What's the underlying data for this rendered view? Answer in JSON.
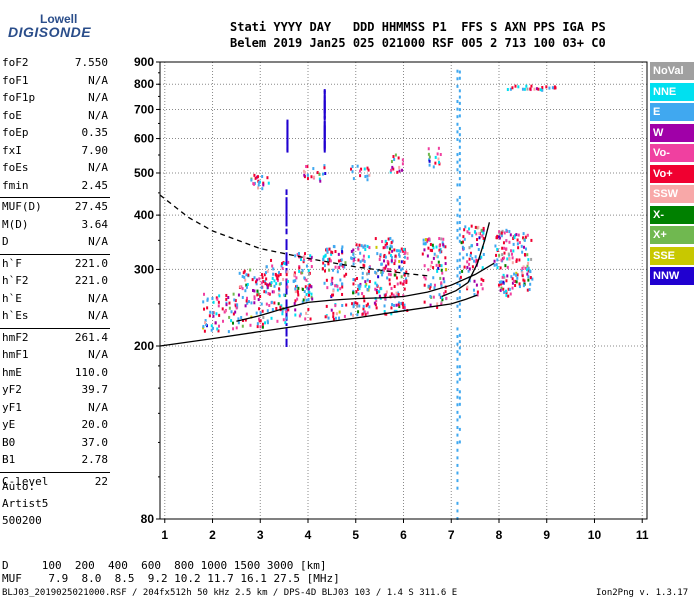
{
  "logo": {
    "top": "Lowell",
    "main": "DIGISONDE"
  },
  "header": {
    "line1": "Stati YYYY DAY   DDD HHMMSS P1  FFS S AXN PPS IGA PS",
    "line2": "Belem 2019 Jan25 025 021000 RSF 005 2 713 100 03+ C0"
  },
  "params_group1": [
    {
      "name": "foF2",
      "value": "7.550"
    },
    {
      "name": "foF1",
      "value": "N/A"
    },
    {
      "name": "foF1p",
      "value": "N/A"
    },
    {
      "name": "foE",
      "value": "N/A"
    },
    {
      "name": "foEp",
      "value": "0.35"
    },
    {
      "name": "fxI",
      "value": "7.90"
    },
    {
      "name": "foEs",
      "value": "N/A"
    },
    {
      "name": "fmin",
      "value": "2.45"
    }
  ],
  "params_group2": [
    {
      "name": "MUF(D)",
      "value": "27.45"
    },
    {
      "name": "M(D)",
      "value": "3.64"
    },
    {
      "name": "D",
      "value": "N/A"
    }
  ],
  "params_group3": [
    {
      "name": "h`F",
      "value": "221.0"
    },
    {
      "name": "h`F2",
      "value": "221.0"
    },
    {
      "name": "h`E",
      "value": "N/A"
    },
    {
      "name": "h`Es",
      "value": "N/A"
    }
  ],
  "params_group4": [
    {
      "name": "hmF2",
      "value": "261.4"
    },
    {
      "name": "hmF1",
      "value": "N/A"
    },
    {
      "name": "hmE",
      "value": "110.0"
    },
    {
      "name": "yF2",
      "value": "39.7"
    },
    {
      "name": "yF1",
      "value": "N/A"
    },
    {
      "name": "yE",
      "value": "20.0"
    },
    {
      "name": "B0",
      "value": "37.0"
    },
    {
      "name": "B1",
      "value": "2.78"
    }
  ],
  "params_group5": [
    {
      "name": "C-level",
      "value": "22"
    }
  ],
  "notes": [
    "Auto:",
    "Artist5",
    "500200"
  ],
  "legend": [
    {
      "label": "NoVal",
      "color": "#a0a0a0"
    },
    {
      "label": "NNE",
      "color": "#00e0f0"
    },
    {
      "label": "E",
      "color": "#40a8f0"
    },
    {
      "label": "W",
      "color": "#a000a8"
    },
    {
      "label": "Vo-",
      "color": "#f040a0"
    },
    {
      "label": "Vo+",
      "color": "#f00030"
    },
    {
      "label": "SSW",
      "color": "#f8a8a8"
    },
    {
      "label": "X-",
      "color": "#008000"
    },
    {
      "label": "X+",
      "color": "#70b850"
    },
    {
      "label": "SSE",
      "color": "#c8c800"
    },
    {
      "label": "NNW",
      "color": "#2000d0"
    }
  ],
  "muf_table": {
    "line1": "D     100  200  400  600  800 1000 1500 3000 [km]",
    "line2": "MUF    7.9  8.0  8.5  9.2 10.2 11.7 16.1 27.5 [MHz]"
  },
  "footer": {
    "left": "BLJ03_2019025021000.RSF / 204fx512h 50 kHz 2.5 km / DPS-4D BLJ03 103 / 1.4 S 311.6 E",
    "right": "Ion2Png v. 1.3.17"
  },
  "chart_data": {
    "type": "scatter",
    "xlabel": "",
    "ylabel": "",
    "xlim": [
      0.9,
      11.1
    ],
    "ylim": [
      80,
      900
    ],
    "x_ticks": [
      1,
      2,
      3,
      4,
      5,
      6,
      7,
      8,
      9,
      10,
      11
    ],
    "y_ticks": [
      80,
      200,
      300,
      400,
      500,
      600,
      700,
      800,
      900
    ],
    "grid": true,
    "series": [
      {
        "style": "solid",
        "color": "#000000",
        "points": [
          [
            0.9,
            200
          ],
          [
            2.0,
            208
          ],
          [
            3.0,
            216
          ],
          [
            4.0,
            224
          ],
          [
            5.0,
            232
          ],
          [
            6.0,
            241
          ],
          [
            7.0,
            250
          ],
          [
            7.3,
            256
          ],
          [
            7.55,
            262
          ]
        ]
      },
      {
        "style": "dashed",
        "color": "#000000",
        "points": [
          [
            0.9,
            445
          ],
          [
            1.5,
            395
          ],
          [
            2.0,
            368
          ],
          [
            3.0,
            335
          ],
          [
            4.0,
            318
          ],
          [
            5.0,
            304
          ],
          [
            6.0,
            294
          ],
          [
            6.5,
            290
          ]
        ]
      },
      {
        "style": "solid",
        "color": "#000000",
        "points": [
          [
            2.5,
            228
          ],
          [
            3.0,
            235
          ],
          [
            3.5,
            244
          ],
          [
            4.0,
            252
          ],
          [
            4.5,
            255
          ],
          [
            5.0,
            257
          ],
          [
            5.5,
            258
          ],
          [
            6.0,
            260
          ],
          [
            6.5,
            266
          ],
          [
            7.0,
            276
          ],
          [
            7.5,
            292
          ],
          [
            7.9,
            310
          ]
        ]
      },
      {
        "style": "solid",
        "color": "#000000",
        "points": [
          [
            6.8,
            260
          ],
          [
            7.1,
            268
          ],
          [
            7.35,
            280
          ],
          [
            7.55,
            310
          ],
          [
            7.7,
            350
          ],
          [
            7.8,
            385
          ]
        ]
      }
    ],
    "echo_clusters": [
      {
        "x_range": [
          1.8,
          2.5
        ],
        "h_range": [
          215,
          265
        ],
        "n": 60
      },
      {
        "x_range": [
          2.5,
          3.1
        ],
        "h_range": [
          220,
          300
        ],
        "n": 80
      },
      {
        "x_range": [
          3.1,
          3.6
        ],
        "h_range": [
          225,
          315
        ],
        "n": 80
      },
      {
        "x_range": [
          3.7,
          4.1
        ],
        "h_range": [
          230,
          330
        ],
        "n": 80
      },
      {
        "x_range": [
          4.3,
          4.8
        ],
        "h_range": [
          230,
          340
        ],
        "n": 90
      },
      {
        "x_range": [
          4.9,
          5.3
        ],
        "h_range": [
          235,
          345
        ],
        "n": 90
      },
      {
        "x_range": [
          5.4,
          5.8
        ],
        "h_range": [
          235,
          355
        ],
        "n": 90
      },
      {
        "x_range": [
          5.8,
          6.1
        ],
        "h_range": [
          240,
          335
        ],
        "n": 70
      },
      {
        "x_range": [
          6.4,
          6.9
        ],
        "h_range": [
          245,
          355
        ],
        "n": 90
      },
      {
        "x_range": [
          7.2,
          7.7
        ],
        "h_range": [
          260,
          380
        ],
        "n": 80
      },
      {
        "x_range": [
          7.9,
          8.3
        ],
        "h_range": [
          260,
          370
        ],
        "n": 80
      },
      {
        "x_range": [
          8.3,
          8.7
        ],
        "h_range": [
          265,
          365
        ],
        "n": 70
      },
      {
        "x_range": [
          2.8,
          3.2
        ],
        "h_range": [
          460,
          495
        ],
        "n": 20
      },
      {
        "x_range": [
          3.9,
          4.4
        ],
        "h_range": [
          475,
          520
        ],
        "n": 20
      },
      {
        "x_range": [
          4.9,
          5.3
        ],
        "h_range": [
          480,
          525
        ],
        "n": 15
      },
      {
        "x_range": [
          5.7,
          6.0
        ],
        "h_range": [
          500,
          555
        ],
        "n": 15
      },
      {
        "x_range": [
          6.5,
          6.8
        ],
        "h_range": [
          510,
          570
        ],
        "n": 15
      },
      {
        "x_range": [
          8.1,
          9.2
        ],
        "h_range": [
          775,
          792
        ],
        "n": 25
      }
    ],
    "vertical_streaks": [
      {
        "x": 3.55,
        "h_range": [
          200,
          460
        ],
        "color": "#2000d0"
      },
      {
        "x": 3.57,
        "h_range": [
          560,
          660
        ],
        "color": "#2000d0"
      },
      {
        "x": 4.35,
        "h_range": [
          560,
          780
        ],
        "color": "#2000d0"
      },
      {
        "x": 7.13,
        "h_range": [
          80,
          890
        ],
        "color": "#40a8f0"
      },
      {
        "x": 7.18,
        "h_range": [
          120,
          880
        ],
        "color": "#40a8f0"
      }
    ]
  }
}
